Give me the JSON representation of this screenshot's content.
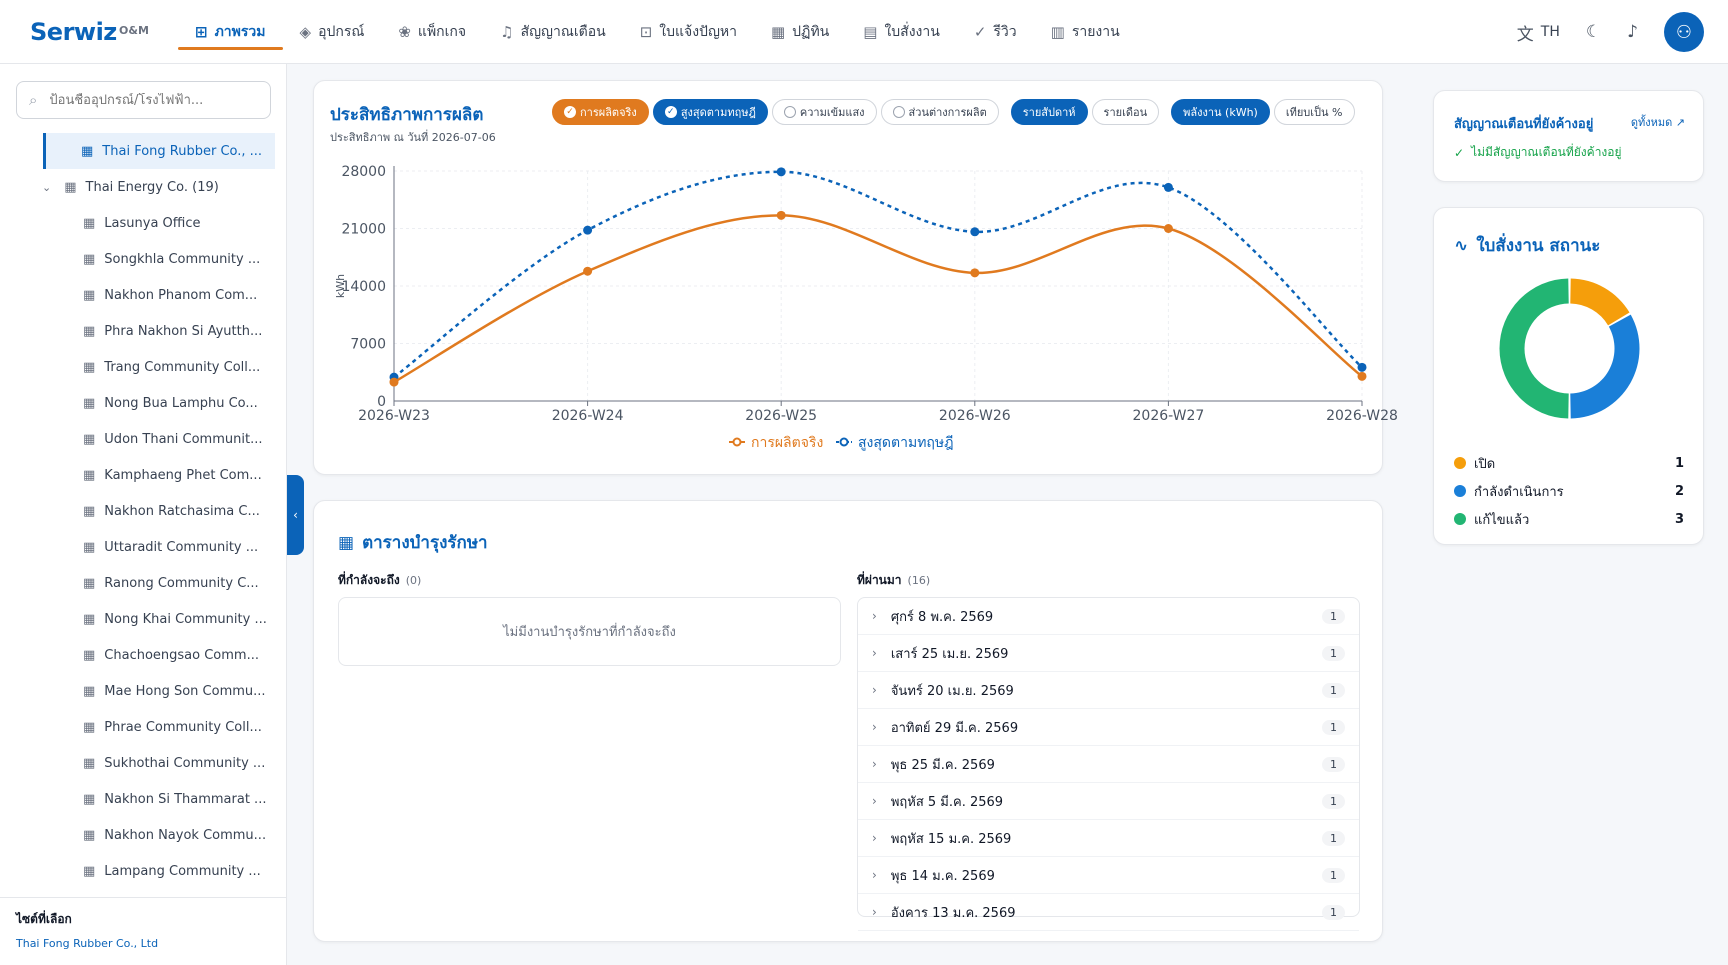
{
  "app": {
    "logo": "Serwiz",
    "logo_sub": "O&M"
  },
  "nav": [
    {
      "label": "ภาพรวม",
      "icon": "⊞",
      "active": true
    },
    {
      "label": "อุปกรณ์",
      "icon": "◈"
    },
    {
      "label": "แพ็กเกจ",
      "icon": "❀"
    },
    {
      "label": "สัญญาณเตือน",
      "icon": "♫"
    },
    {
      "label": "ใบแจ้งปัญหา",
      "icon": "⊡"
    },
    {
      "label": "ปฏิทิน",
      "icon": "▦"
    },
    {
      "label": "ใบสั่งงาน",
      "icon": "▤"
    },
    {
      "label": "รีวิว",
      "icon": "✓"
    },
    {
      "label": "รายงาน",
      "icon": "▥"
    }
  ],
  "topright": {
    "lang_icon": "translate-icon",
    "lang": "TH",
    "theme_icon": "moon-icon",
    "bell_icon": "bell-icon",
    "avatar_icon": "user-icon"
  },
  "sidebar": {
    "search_placeholder": "ป้อนชื่ออุปกรณ์/โรงไฟฟ้า...",
    "selected_item": "Thai Fong Rubber Co., ...",
    "group": "Thai Energy Co. (19)",
    "children": [
      "Lasunya Office",
      "Songkhla Community ...",
      "Nakhon Phanom Com...",
      "Phra Nakhon Si Ayutth...",
      "Trang Community Coll...",
      "Nong Bua Lamphu Co...",
      "Udon Thani Communit...",
      "Kamphaeng Phet Com...",
      "Nakhon Ratchasima C...",
      "Uttaradit Community ...",
      "Ranong Community C...",
      "Nong Khai Community ...",
      "Chachoengsao Comm...",
      "Mae Hong Son Commu...",
      "Phrae Community Coll...",
      "Sukhothai Community ...",
      "Nakhon Si Thammarat ...",
      "Nakhon Nayok Commu...",
      "Lampang Community ..."
    ],
    "selected_site_title": "ไซต์ที่เลือก",
    "selected_site_value": "Thai Fong Rubber Co., Ltd"
  },
  "performance": {
    "title": "ประสิทธิภาพการผลิต",
    "subtitle": "ประสิทธิภาพ ณ วันที่ 2026-07-06",
    "chips": [
      {
        "label": "การผลิตจริง",
        "style": "orange",
        "checked": true
      },
      {
        "label": "สูงสุดตามทฤษฎี",
        "style": "blue",
        "checked": true
      },
      {
        "label": "ความเข้มแสง",
        "style": "plain",
        "checked": false
      },
      {
        "label": "ส่วนต่างการผลิต",
        "style": "plain",
        "checked": false
      },
      {
        "label": "รายสัปดาห์",
        "style": "blue",
        "gap": true
      },
      {
        "label": "รายเดือน",
        "style": "plain"
      },
      {
        "label": "พลังงาน (kWh)",
        "style": "blue",
        "gap": true
      },
      {
        "label": "เทียบเป็น %",
        "style": "plain"
      }
    ]
  },
  "chart_data": {
    "type": "line",
    "categories": [
      "2026-W23",
      "2026-W24",
      "2026-W25",
      "2026-W26",
      "2026-W27",
      "2026-W28"
    ],
    "series": [
      {
        "name": "การผลิตจริง",
        "values": [
          2300,
          15800,
          22600,
          15600,
          21000,
          3000
        ],
        "color": "#e07a1f",
        "style": "solid"
      },
      {
        "name": "สูงสุดตามทฤษฎี",
        "values": [
          2900,
          20800,
          27900,
          20600,
          26000,
          4100
        ],
        "color": "#0b63b8",
        "style": "dotted"
      }
    ],
    "ylabel": "kWh",
    "yticks": [
      0,
      7000,
      14000,
      21000,
      28000
    ],
    "ylim": [
      0,
      28000
    ],
    "grid": true,
    "legend_position": "bottom"
  },
  "maintenance": {
    "title": "ตารางบำรุงรักษา",
    "upcoming_title": "ที่กำลังจะถึง",
    "upcoming_count": "(0)",
    "upcoming_empty": "ไม่มีงานบำรุงรักษาที่กำลังจะถึง",
    "past_title": "ที่ผ่านมา",
    "past_count": "(16)",
    "past": [
      {
        "label": "ศุกร์ 8 พ.ค. 2569",
        "count": "1"
      },
      {
        "label": "เสาร์ 25 เม.ย. 2569",
        "count": "1"
      },
      {
        "label": "จันทร์ 20 เม.ย. 2569",
        "count": "1"
      },
      {
        "label": "อาทิตย์ 29 มี.ค. 2569",
        "count": "1"
      },
      {
        "label": "พุธ 25 มี.ค. 2569",
        "count": "1"
      },
      {
        "label": "พฤหัส 5 มี.ค. 2569",
        "count": "1"
      },
      {
        "label": "พฤหัส 15 ม.ค. 2569",
        "count": "1"
      },
      {
        "label": "พุธ 14 ม.ค. 2569",
        "count": "1"
      },
      {
        "label": "อังคาร 13 ม.ค. 2569",
        "count": "1"
      }
    ]
  },
  "alerts": {
    "title": "สัญญาณเตือนที่ยังค้างอยู่",
    "link": "ดูทั้งหมด",
    "empty": "ไม่มีสัญญาณเตือนที่ยังค้างอยู่"
  },
  "workorders": {
    "title": "ใบสั่งงาน สถานะ",
    "items": [
      {
        "label": "เปิด",
        "value": "1",
        "count": 1,
        "color": "#f59e0b"
      },
      {
        "label": "กำลังดำเนินการ",
        "value": "2",
        "count": 2,
        "color": "#1a7fd8"
      },
      {
        "label": "แก้ไขแล้ว",
        "value": "3",
        "count": 3,
        "color": "#22b573"
      }
    ]
  }
}
